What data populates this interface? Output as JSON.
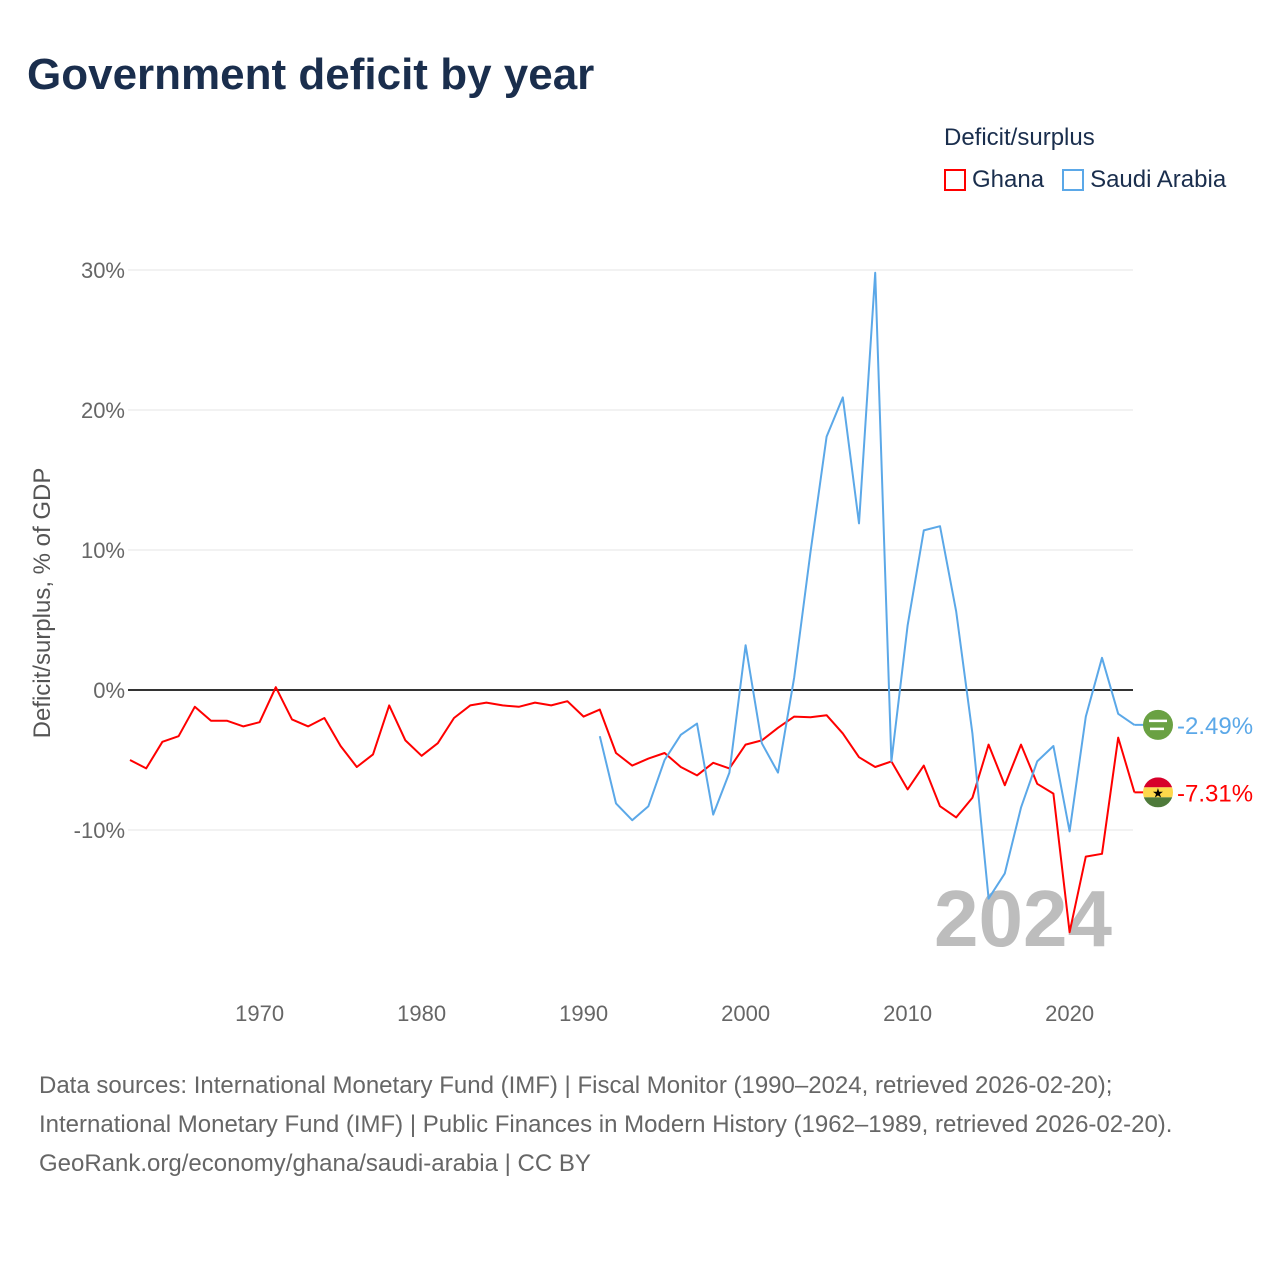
{
  "title": "Government deficit by year",
  "legend": {
    "title": "Deficit/surplus",
    "items": [
      {
        "label": "Ghana",
        "color": "#ff0000"
      },
      {
        "label": "Saudi Arabia",
        "color": "#5ba8e8"
      }
    ]
  },
  "footer": {
    "sources": "Data sources: International Monetary Fund (IMF) | Fiscal Monitor (1990–2024, retrieved 2026-02-20); International Monetary Fund (IMF) | Public Finances in Modern History (1962–1989, retrieved 2026-02-20).",
    "credit": "GeoRank.org/economy/ghana/saudi-arabia | CC BY"
  },
  "chart_data": {
    "type": "line",
    "title": "Government deficit by year",
    "ylabel": "Deficit/surplus, % of GDP",
    "xlabel": "",
    "xlim": [
      1962,
      2024
    ],
    "ylim": [
      -20,
      30
    ],
    "x_ticks": [
      "1970",
      "1980",
      "1990",
      "2000",
      "2010",
      "2020"
    ],
    "y_ticks": [
      {
        "value": 30,
        "label": "30%"
      },
      {
        "value": 20,
        "label": "20%"
      },
      {
        "value": 10,
        "label": "10%"
      },
      {
        "value": 0,
        "label": "0%"
      },
      {
        "value": -10,
        "label": "-10%"
      }
    ],
    "grid": true,
    "legend_position": "top-right",
    "year_watermark": "2024",
    "series": [
      {
        "name": "Ghana",
        "color": "#ff0000",
        "end_label": "-7.31%",
        "start_year": 1962,
        "values": [
          -5.0,
          -5.6,
          -3.7,
          -3.3,
          -1.2,
          -2.2,
          -2.2,
          -2.6,
          -2.3,
          0.2,
          -2.1,
          -2.6,
          -2.0,
          -4.0,
          -5.5,
          -4.6,
          -1.1,
          -3.6,
          -4.7,
          -3.8,
          -2.0,
          -1.1,
          -0.9,
          -1.1,
          -1.2,
          -0.9,
          -1.1,
          -0.8,
          -1.9,
          -1.4,
          -4.5,
          -5.4,
          -4.9,
          -4.5,
          -5.5,
          -6.1,
          -5.2,
          -5.6,
          -3.9,
          -3.6,
          -2.7,
          -1.9,
          -1.95,
          -1.8,
          -3.1,
          -4.8,
          -5.5,
          -5.1,
          -7.1,
          -5.4,
          -8.3,
          -9.1,
          -7.7,
          -3.9,
          -6.8,
          -3.9,
          -6.7,
          -7.4,
          -17.3,
          -11.9,
          -11.7,
          -3.4,
          -7.31
        ]
      },
      {
        "name": "Saudi Arabia",
        "color": "#5ba8e8",
        "end_label": "-2.49%",
        "start_year": 1991,
        "values": [
          -3.3,
          -8.1,
          -9.3,
          -8.3,
          -5.0,
          -3.2,
          -2.4,
          -8.9,
          -5.9,
          3.2,
          -3.8,
          -5.9,
          0.9,
          9.8,
          18.1,
          20.9,
          11.9,
          29.8,
          -5.1,
          4.6,
          11.4,
          11.7,
          5.6,
          -3.1,
          -14.9,
          -13.1,
          -8.4,
          -5.1,
          -4.0,
          -10.1,
          -1.9,
          2.3,
          -1.7,
          -2.49
        ]
      }
    ]
  }
}
